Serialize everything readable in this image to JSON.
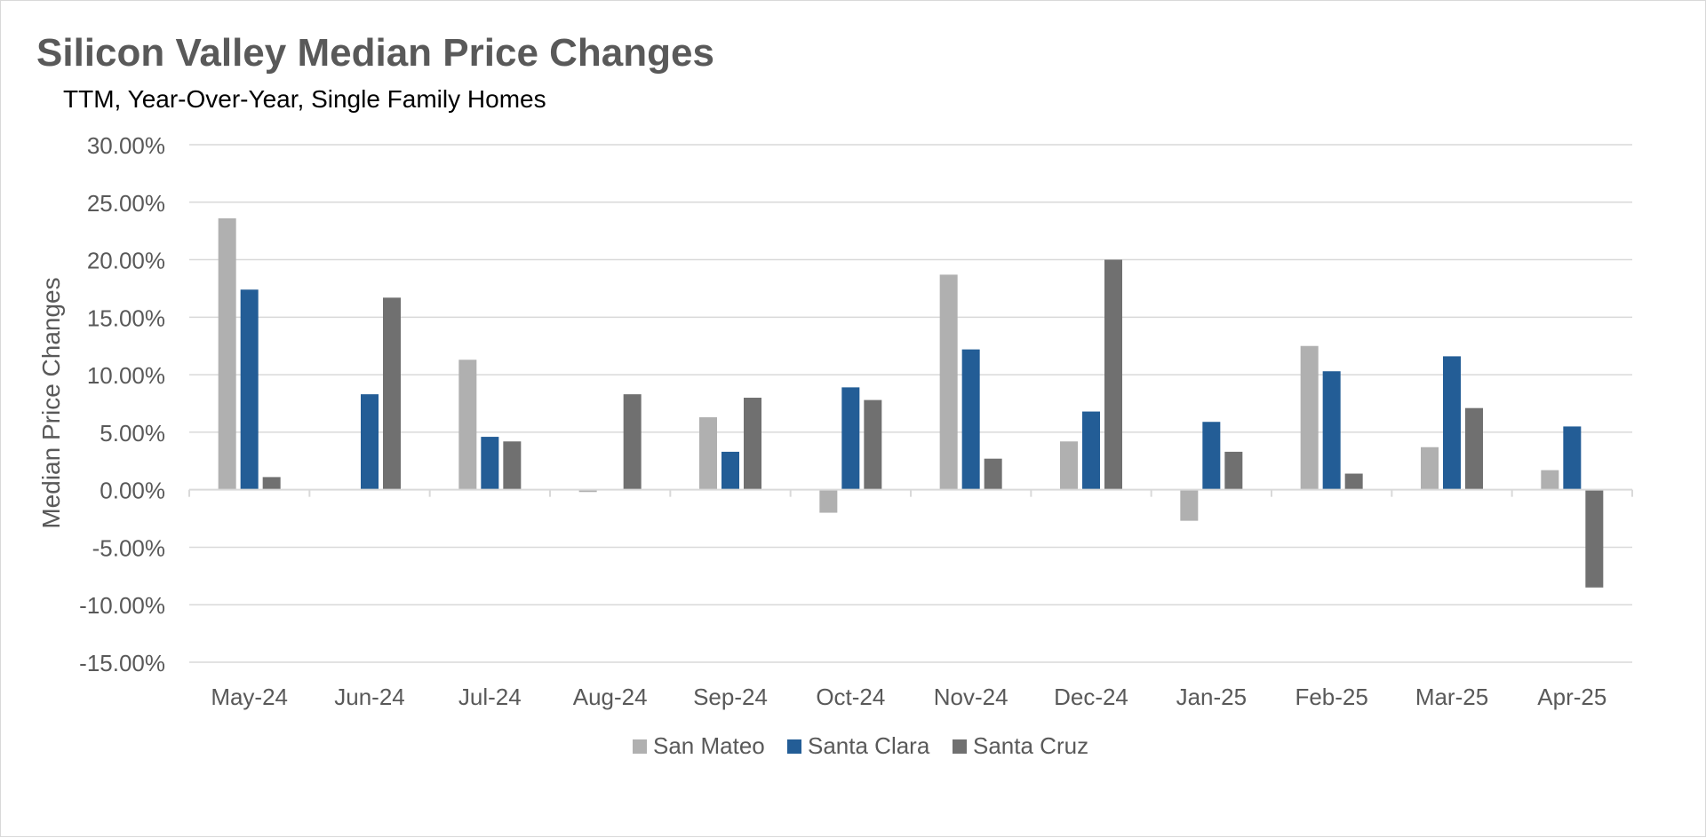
{
  "chart_data": {
    "type": "bar",
    "title": "Silicon Valley Median Price Changes",
    "subtitle": "TTM, Year-Over-Year,  Single Family Homes",
    "xlabel": "",
    "ylabel": "Median Price Changes",
    "ylim": [
      -15,
      30
    ],
    "yticks": [
      30,
      25,
      20,
      15,
      10,
      5,
      0,
      -5,
      -10,
      -15
    ],
    "ytick_labels": [
      "30.00%",
      "25.00%",
      "20.00%",
      "15.00%",
      "10.00%",
      "5.00%",
      "0.00%",
      "-5.00%",
      "-10.00%",
      "-15.00%"
    ],
    "grid": true,
    "legend_position": "bottom",
    "categories": [
      "May-24",
      "Jun-24",
      "Jul-24",
      "Aug-24",
      "Sep-24",
      "Oct-24",
      "Nov-24",
      "Dec-24",
      "Jan-25",
      "Feb-25",
      "Mar-25",
      "Apr-25"
    ],
    "series": [
      {
        "name": "San Mateo",
        "color": "#b0b0b0",
        "values": [
          23.6,
          0.0,
          11.3,
          -0.2,
          6.3,
          -2.0,
          18.7,
          4.2,
          -2.7,
          12.5,
          3.7,
          1.7
        ]
      },
      {
        "name": "Santa Clara",
        "color": "#235d96",
        "values": [
          17.4,
          8.3,
          4.6,
          0.0,
          3.3,
          8.9,
          12.2,
          6.8,
          5.9,
          10.3,
          11.6,
          5.5
        ]
      },
      {
        "name": "Santa Cruz",
        "color": "#707070",
        "values": [
          1.1,
          16.7,
          4.2,
          8.3,
          8.0,
          7.8,
          2.7,
          20.0,
          3.3,
          1.4,
          7.1,
          -8.5
        ]
      }
    ]
  }
}
